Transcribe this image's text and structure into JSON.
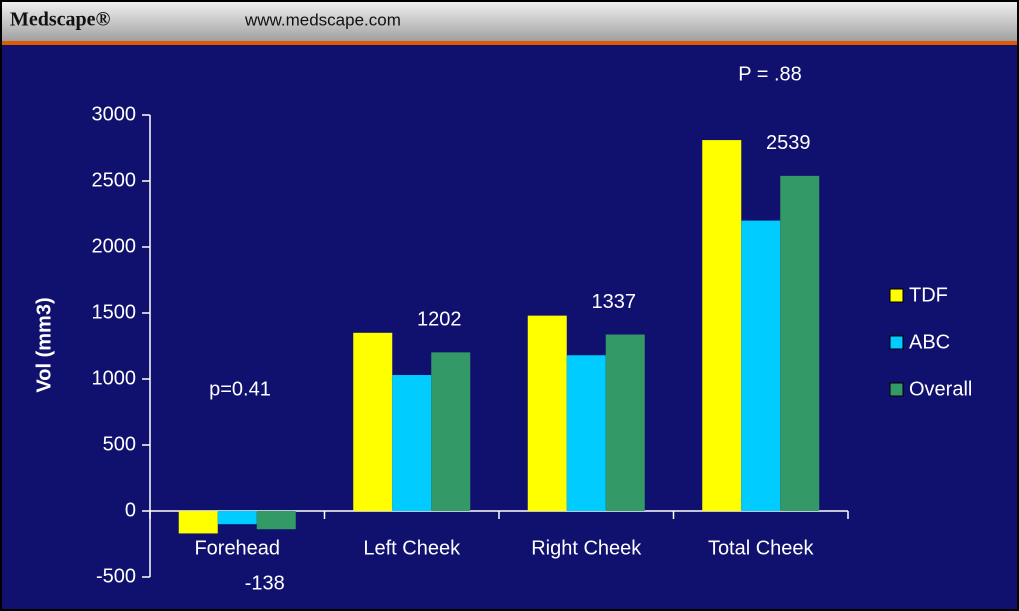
{
  "header": {
    "brand": "Medscape®",
    "url": "www.medscape.com"
  },
  "chart_data": {
    "type": "bar",
    "y_label": "Vol (mm3)",
    "annotations": [
      "p=0.41",
      "P = .88"
    ],
    "categories": [
      "Forehead",
      "Left Cheek",
      "Right Cheek",
      "Total Cheek"
    ],
    "series": [
      {
        "name": "TDF",
        "color": "#ffff00",
        "values": [
          -170,
          1350,
          1480,
          2810
        ]
      },
      {
        "name": "ABC",
        "color": "#00ccff",
        "values": [
          -100,
          1030,
          1180,
          2200
        ]
      },
      {
        "name": "Overall",
        "color": "#339966",
        "values": [
          -138,
          1202,
          1337,
          2539
        ],
        "data_labels": true
      }
    ],
    "ylim": [
      -500,
      3000
    ],
    "yticks": [
      -500,
      0,
      500,
      1000,
      1500,
      2000,
      2500,
      3000
    ],
    "legend": "right"
  }
}
